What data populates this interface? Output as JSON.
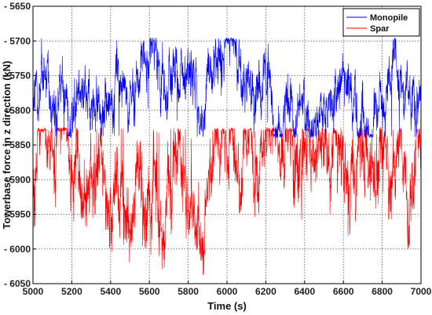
{
  "chart_data": {
    "type": "line",
    "title": "",
    "xlabel": "Time (s)",
    "ylabel": "Towerbase force in z direction (kN)",
    "xlim": [
      5000,
      7000
    ],
    "ylim": [
      -6050,
      -5650
    ],
    "xticks": [
      5000,
      5200,
      5400,
      5600,
      5800,
      6000,
      6200,
      6400,
      6600,
      6800,
      7000
    ],
    "yticks": [
      -5650,
      -5700,
      -5750,
      -5800,
      -5850,
      -5900,
      -5950,
      -6000,
      -6050
    ],
    "x_tick_labels": [
      "5000",
      "5200",
      "5400",
      "5600",
      "5800",
      "6000",
      "6200",
      "6400",
      "6600",
      "6800",
      "7000"
    ],
    "y_tick_labels": [
      "- 5650",
      "- 5700",
      "- 5750",
      "- 5800",
      "- 5850",
      "- 5900",
      "- 5950",
      "- 6000",
      "- 6050"
    ],
    "grid": true,
    "legend_position": "top-right",
    "series": [
      {
        "name": "Monopile",
        "color": "#0000ff",
        "mean": -5785,
        "amplitude": 75,
        "min": -5840,
        "max": -5695,
        "samples": 2000
      },
      {
        "name": "Spar",
        "color": "#ff0000",
        "mean": -5900,
        "amplitude": 110,
        "min": -6040,
        "max": -5825,
        "samples": 2000
      }
    ]
  }
}
